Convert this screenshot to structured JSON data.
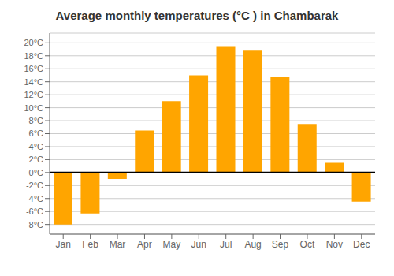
{
  "chart_data": {
    "type": "bar",
    "title": "Average monthly temperatures (°C ) in Chambarak",
    "categories": [
      "Jan",
      "Feb",
      "Mar",
      "Apr",
      "May",
      "Jun",
      "Jul",
      "Aug",
      "Sep",
      "Oct",
      "Nov",
      "Dec"
    ],
    "values": [
      -8.0,
      -6.3,
      -1.0,
      6.5,
      11.0,
      15.0,
      19.5,
      18.8,
      14.7,
      7.5,
      1.5,
      -4.5
    ],
    "color": "#FFA500",
    "ylim": [
      -9.5,
      21.5
    ],
    "yticks": [
      {
        "value": -8,
        "label": "-8°C"
      },
      {
        "value": -6,
        "label": "-6°C"
      },
      {
        "value": -4,
        "label": "-4°C"
      },
      {
        "value": -2,
        "label": "-2°C"
      },
      {
        "value": 0,
        "label": "0°C"
      },
      {
        "value": 2,
        "label": "2°C"
      },
      {
        "value": 4,
        "label": "4°C"
      },
      {
        "value": 6,
        "label": "6°C"
      },
      {
        "value": 8,
        "label": "8°C"
      },
      {
        "value": 10,
        "label": "10°C"
      },
      {
        "value": 12,
        "label": "12°C"
      },
      {
        "value": 14,
        "label": "14°C"
      },
      {
        "value": 16,
        "label": "16°C"
      },
      {
        "value": 18,
        "label": "18°C"
      },
      {
        "value": 20,
        "label": "20°C"
      }
    ],
    "grid": true
  }
}
